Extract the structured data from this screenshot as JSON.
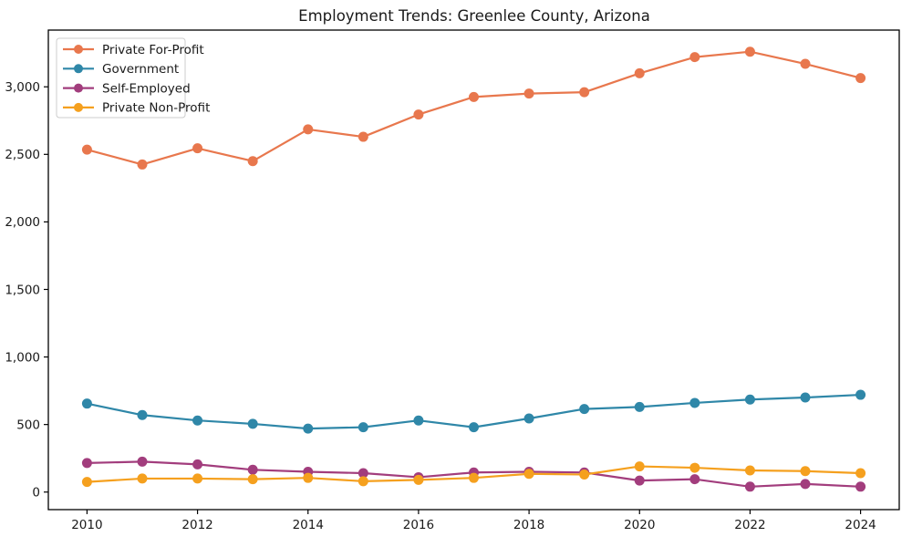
{
  "window": {
    "background_color": "#ffffff",
    "text_color": "#1a1a1a",
    "frame_color": "#000000",
    "legend_border_color": "#cccccc",
    "legend_background_color": "#ffffff"
  },
  "chart_data": {
    "type": "line",
    "title": "Employment Trends: Greenlee County, Arizona",
    "xlabel": "",
    "ylabel": "",
    "grid": false,
    "legend_position": "upper-left",
    "x": [
      2010,
      2011,
      2012,
      2013,
      2014,
      2015,
      2016,
      2017,
      2018,
      2019,
      2020,
      2021,
      2022,
      2023,
      2024
    ],
    "xlim": [
      2009.3,
      2024.7
    ],
    "ylim": [
      -130,
      3420
    ],
    "xticks": [
      2010,
      2012,
      2014,
      2016,
      2018,
      2020,
      2022,
      2024
    ],
    "xtick_labels": [
      "2010",
      "2012",
      "2014",
      "2016",
      "2018",
      "2020",
      "2022",
      "2024"
    ],
    "yticks": [
      0,
      500,
      1000,
      1500,
      2000,
      2500,
      3000
    ],
    "ytick_labels": [
      "0",
      "500",
      "1,000",
      "1,500",
      "2,000",
      "2,500",
      "3,000"
    ],
    "series": [
      {
        "name": "Private For-Profit",
        "color": "#e8774d",
        "values": [
          2535,
          2425,
          2545,
          2450,
          2685,
          2630,
          2795,
          2925,
          2950,
          2960,
          3100,
          3220,
          3260,
          3170,
          3065
        ]
      },
      {
        "name": "Government",
        "color": "#2f87a8",
        "values": [
          655,
          570,
          530,
          505,
          470,
          480,
          530,
          480,
          545,
          615,
          630,
          660,
          685,
          700,
          720
        ]
      },
      {
        "name": "Self-Employed",
        "color": "#a23d7d",
        "values": [
          215,
          225,
          205,
          165,
          150,
          140,
          110,
          145,
          150,
          145,
          85,
          95,
          40,
          60,
          40
        ]
      },
      {
        "name": "Private Non-Profit",
        "color": "#f5a01e",
        "values": [
          75,
          100,
          100,
          95,
          105,
          80,
          90,
          105,
          135,
          130,
          190,
          180,
          160,
          155,
          140
        ]
      }
    ]
  }
}
